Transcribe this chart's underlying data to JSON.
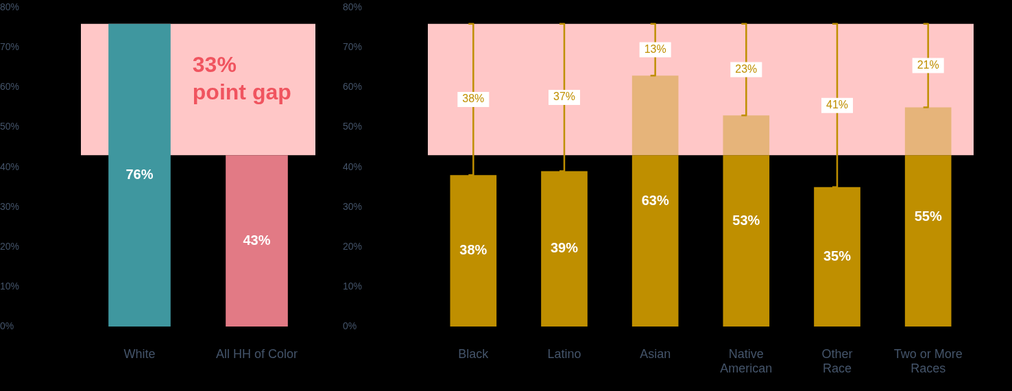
{
  "chart_data": [
    {
      "type": "bar",
      "categories": [
        "White",
        "All HH of Color"
      ],
      "values": [
        76,
        43
      ],
      "colors": [
        "#3f979f",
        "#e27a85"
      ],
      "value_labels": [
        "76%",
        "43%"
      ],
      "ylim": [
        0,
        80
      ],
      "yticks": [
        {
          "value": 0,
          "label": "0%"
        },
        {
          "value": 10,
          "label": "10%"
        },
        {
          "value": 20,
          "label": "20%"
        },
        {
          "value": 30,
          "label": "30%"
        },
        {
          "value": 40,
          "label": "40%"
        },
        {
          "value": 50,
          "label": "50%"
        },
        {
          "value": 60,
          "label": "60%"
        },
        {
          "value": 70,
          "label": "70%"
        },
        {
          "value": 80,
          "label": "80%"
        }
      ],
      "bands": [
        {
          "axis": "y",
          "from": 43,
          "to": 76,
          "color": "#ffc7c7"
        }
      ],
      "annotations": [
        "33%\npoint gap"
      ],
      "grid": false,
      "legend": false
    },
    {
      "type": "bar",
      "categories": [
        "Black",
        "Latino",
        "Asian",
        "Native\nAmerican",
        "Other\nRace",
        "Two or More\nRaces"
      ],
      "stacked": true,
      "series": [
        {
          "color": "#bf8f00",
          "values": [
            38,
            39,
            43,
            43,
            35,
            43
          ]
        },
        {
          "color": "#e6b47a",
          "values": [
            null,
            null,
            20,
            10,
            null,
            12
          ]
        }
      ],
      "totals": [
        "38%",
        "39%",
        "63%",
        "53%",
        "35%",
        "55%"
      ],
      "ylim": [
        0,
        80
      ],
      "yticks": [
        {
          "value": 0,
          "label": "0%"
        },
        {
          "value": 10,
          "label": "10%"
        },
        {
          "value": 20,
          "label": "20%"
        },
        {
          "value": 30,
          "label": "30%"
        },
        {
          "value": 40,
          "label": "40%"
        },
        {
          "value": 50,
          "label": "50%"
        },
        {
          "value": 60,
          "label": "60%"
        },
        {
          "value": 70,
          "label": "70%"
        },
        {
          "value": 80,
          "label": "80%"
        }
      ],
      "bands": [
        {
          "axis": "y",
          "from": 43,
          "to": 76,
          "color": "#ffc7c7"
        }
      ],
      "annotations": [
        "38%",
        "37%",
        "13%",
        "23%",
        "41%",
        "21%"
      ],
      "grid": false,
      "legend": false
    }
  ]
}
